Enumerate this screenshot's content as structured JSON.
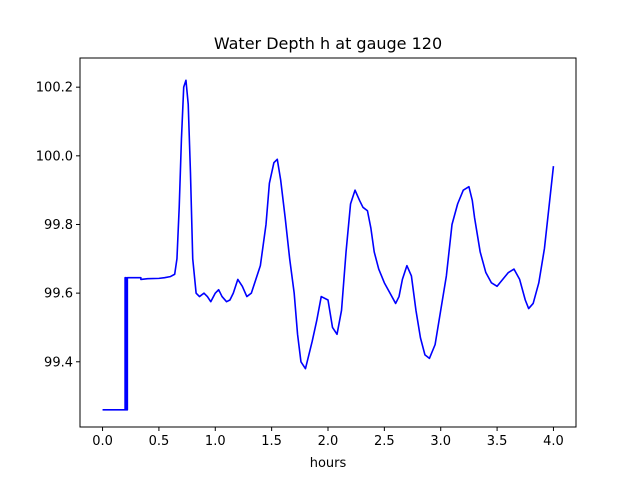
{
  "chart_data": {
    "type": "line",
    "title": "Water Depth h at gauge 120",
    "xlabel": "hours",
    "ylabel": "",
    "xlim": [
      -0.2,
      4.2
    ],
    "ylim": [
      99.21,
      100.285
    ],
    "xticks": [
      0.0,
      0.5,
      1.0,
      1.5,
      2.0,
      2.5,
      3.0,
      3.5,
      4.0
    ],
    "xtick_labels": [
      "0.0",
      "0.5",
      "1.0",
      "1.5",
      "2.0",
      "2.5",
      "3.0",
      "3.5",
      "4.0"
    ],
    "yticks": [
      99.4,
      99.6,
      99.8,
      100.0,
      100.2
    ],
    "ytick_labels": [
      "99.4",
      "99.6",
      "99.8",
      "100.0",
      "100.2"
    ],
    "grid": false,
    "series": [
      {
        "color": "#0000ff",
        "x": [
          0.0,
          0.19,
          0.19,
          0.2,
          0.2,
          0.21,
          0.21,
          0.22,
          0.22,
          0.34,
          0.34,
          0.4,
          0.5,
          0.55,
          0.6,
          0.64,
          0.66,
          0.68,
          0.7,
          0.72,
          0.74,
          0.76,
          0.78,
          0.8,
          0.83,
          0.86,
          0.9,
          0.93,
          0.96,
          1.0,
          1.03,
          1.06,
          1.1,
          1.13,
          1.16,
          1.2,
          1.24,
          1.28,
          1.32,
          1.36,
          1.4,
          1.45,
          1.48,
          1.52,
          1.55,
          1.58,
          1.62,
          1.66,
          1.7,
          1.73,
          1.76,
          1.8,
          1.83,
          1.86,
          1.9,
          1.94,
          2.0,
          2.04,
          2.08,
          2.12,
          2.16,
          2.2,
          2.24,
          2.28,
          2.31,
          2.35,
          2.38,
          2.41,
          2.45,
          2.5,
          2.55,
          2.6,
          2.63,
          2.66,
          2.7,
          2.74,
          2.78,
          2.82,
          2.86,
          2.9,
          2.95,
          3.0,
          3.05,
          3.1,
          3.15,
          3.2,
          3.25,
          3.28,
          3.3,
          3.35,
          3.4,
          3.45,
          3.5,
          3.55,
          3.6,
          3.65,
          3.7,
          3.75,
          3.78,
          3.82,
          3.87,
          3.92,
          3.96,
          4.0
        ],
        "y": [
          99.26,
          99.26,
          99.26,
          99.26,
          99.645,
          99.645,
          99.26,
          99.26,
          99.645,
          99.645,
          99.64,
          99.642,
          99.643,
          99.645,
          99.648,
          99.655,
          99.7,
          99.85,
          100.05,
          100.2,
          100.22,
          100.15,
          99.95,
          99.7,
          99.6,
          99.59,
          99.6,
          99.59,
          99.575,
          99.6,
          99.61,
          99.59,
          99.575,
          99.58,
          99.6,
          99.64,
          99.62,
          99.59,
          99.6,
          99.64,
          99.68,
          99.8,
          99.92,
          99.98,
          99.99,
          99.93,
          99.82,
          99.7,
          99.6,
          99.48,
          99.4,
          99.38,
          99.42,
          99.46,
          99.52,
          99.59,
          99.58,
          99.5,
          99.48,
          99.55,
          99.72,
          99.86,
          99.9,
          99.87,
          99.85,
          99.84,
          99.79,
          99.72,
          99.67,
          99.63,
          99.6,
          99.57,
          99.59,
          99.64,
          99.68,
          99.65,
          99.55,
          99.47,
          99.42,
          99.41,
          99.45,
          99.55,
          99.65,
          99.8,
          99.86,
          99.9,
          99.91,
          99.87,
          99.82,
          99.72,
          99.66,
          99.63,
          99.62,
          99.64,
          99.66,
          99.67,
          99.64,
          99.58,
          99.555,
          99.57,
          99.63,
          99.73,
          99.85,
          99.97
        ]
      }
    ]
  }
}
